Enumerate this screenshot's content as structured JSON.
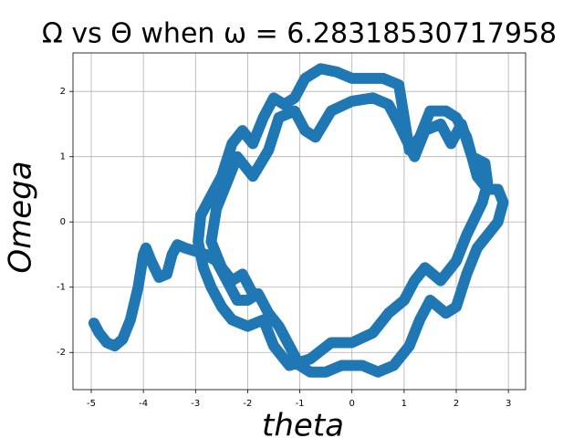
{
  "chart_data": {
    "type": "line",
    "title": "Ω vs Θ when ω = 6.28318530717958",
    "x_label": "theta",
    "y_label": "Omega",
    "color": "#1f77b4",
    "grid": true,
    "xlim": [
      -5.35,
      3.33
    ],
    "ylim": [
      -2.57,
      2.59
    ],
    "xticks": [
      -5,
      -4,
      -3,
      -2,
      -1,
      0,
      1,
      2,
      3
    ],
    "yticks": [
      -2,
      -1,
      0,
      1,
      2
    ],
    "x": [
      -4.95,
      -4.85,
      -4.7,
      -4.55,
      -4.4,
      -4.25,
      -4.1,
      -4.0,
      -3.95,
      -3.85,
      -3.7,
      -3.55,
      -3.45,
      -3.35,
      -3.2,
      -3.0,
      -2.8,
      -2.6,
      -2.4,
      -2.2,
      -2.0,
      -1.8,
      -1.6,
      -1.4,
      -1.2,
      -1.0,
      -0.8,
      -0.5,
      -0.2,
      0.2,
      0.5,
      0.8,
      1.1,
      1.3,
      1.5,
      1.8,
      2.0,
      2.2,
      2.4,
      2.6,
      2.8,
      2.9,
      2.8,
      2.6,
      2.4,
      2.2,
      2.0,
      1.8,
      1.5,
      1.3,
      1.1,
      1.0,
      0.9,
      0.6,
      0.3,
      0.0,
      -0.3,
      -0.6,
      -0.9,
      -1.1,
      -1.3,
      -1.5,
      -1.7,
      -1.9,
      -2.1,
      -2.3,
      -2.5,
      -2.7,
      -2.9,
      -2.95,
      -2.85,
      -2.7,
      -2.5,
      -2.3,
      -2.0,
      -1.7,
      -1.5,
      -1.2,
      -0.8,
      -0.4,
      0.0,
      0.4,
      0.7,
      1.0,
      1.2,
      1.4,
      1.7,
      2.0,
      2.2,
      2.5,
      2.6,
      2.55,
      2.3,
      2.1,
      1.9,
      1.7,
      1.4,
      1.2,
      0.9,
      0.7,
      0.4,
      0.0,
      -0.4,
      -0.7,
      -0.9,
      -1.1,
      -1.4,
      -1.6,
      -1.9,
      -2.2,
      -2.4,
      -2.6,
      -2.7,
      -2.5,
      -2.3,
      -2.1,
      -1.9
    ],
    "values": [
      -1.55,
      -1.7,
      -1.85,
      -1.9,
      -1.8,
      -1.5,
      -1.0,
      -0.5,
      -0.4,
      -0.6,
      -0.85,
      -0.8,
      -0.5,
      -0.35,
      -0.4,
      -0.45,
      -0.5,
      -0.6,
      -0.9,
      -1.2,
      -1.2,
      -1.1,
      -1.4,
      -1.6,
      -1.9,
      -2.2,
      -2.3,
      -2.3,
      -2.2,
      -2.2,
      -2.3,
      -2.2,
      -1.9,
      -1.5,
      -1.2,
      -1.4,
      -1.3,
      -0.8,
      -0.4,
      -0.2,
      0.0,
      0.3,
      0.5,
      0.5,
      0.7,
      1.3,
      1.6,
      1.7,
      1.7,
      1.3,
      1.1,
      1.6,
      2.1,
      2.2,
      2.2,
      2.2,
      2.3,
      2.35,
      2.2,
      1.9,
      1.8,
      1.9,
      1.6,
      1.2,
      1.4,
      1.2,
      0.7,
      0.4,
      0.1,
      -0.3,
      -0.7,
      -1.0,
      -1.3,
      -1.5,
      -1.6,
      -1.5,
      -1.9,
      -2.2,
      -2.1,
      -1.85,
      -1.85,
      -1.7,
      -1.4,
      -1.2,
      -0.9,
      -0.7,
      -0.9,
      -0.6,
      -0.2,
      0.3,
      0.6,
      0.9,
      1.0,
      1.5,
      1.2,
      1.5,
      1.4,
      1.0,
      1.5,
      1.8,
      1.9,
      1.85,
      1.7,
      1.3,
      1.4,
      1.7,
      1.6,
      1.1,
      0.7,
      1.0,
      0.6,
      0.2,
      -0.3,
      -0.7,
      -0.9,
      -0.8,
      -1.1
    ]
  }
}
